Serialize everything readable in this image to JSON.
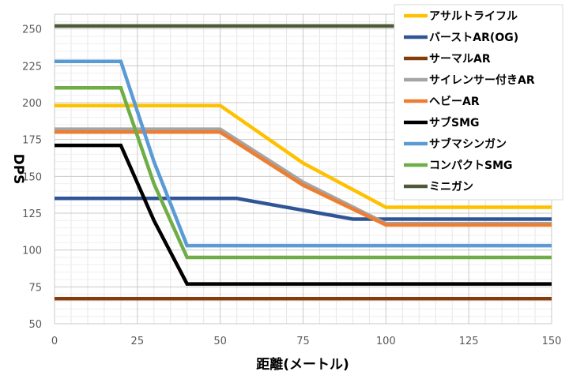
{
  "chart_data": {
    "type": "line",
    "xlabel": "距離(メートル)",
    "ylabel": "DPS",
    "xlim": [
      0,
      150
    ],
    "ylim": [
      50,
      260
    ],
    "xticks": [
      0,
      25,
      50,
      75,
      100,
      125,
      150
    ],
    "yticks": [
      50,
      75,
      100,
      125,
      150,
      175,
      200,
      225,
      250
    ],
    "grid": true,
    "legend_position": "top-right",
    "series": [
      {
        "name": "アサルトライフル",
        "color": "#FFC000",
        "x": [
          0,
          50,
          75,
          100,
          150
        ],
        "y": [
          198,
          198,
          159,
          129,
          129
        ]
      },
      {
        "name": "バーストAR(OG)",
        "color": "#2F5597",
        "x": [
          0,
          55,
          90,
          150
        ],
        "y": [
          135,
          135,
          121,
          121
        ]
      },
      {
        "name": "サーマルAR",
        "color": "#843C0C",
        "x": [
          0,
          150
        ],
        "y": [
          67,
          67
        ]
      },
      {
        "name": "サイレンサー付きAR",
        "color": "#A5A5A5",
        "x": [
          0,
          50,
          75,
          100,
          150
        ],
        "y": [
          182,
          182,
          146,
          118,
          118
        ]
      },
      {
        "name": "ヘビーAR",
        "color": "#ED7D31",
        "x": [
          0,
          50,
          75,
          100,
          150
        ],
        "y": [
          180,
          180,
          144,
          117,
          117
        ]
      },
      {
        "name": "サブSMG",
        "color": "#000000",
        "x": [
          0,
          20,
          30,
          40,
          150
        ],
        "y": [
          171,
          171,
          120,
          77,
          77
        ]
      },
      {
        "name": "サブマシンガン",
        "color": "#5B9BD5",
        "x": [
          0,
          20,
          30,
          40,
          150
        ],
        "y": [
          228,
          228,
          160,
          103,
          103
        ]
      },
      {
        "name": "コンパクトSMG",
        "color": "#70AD47",
        "x": [
          0,
          20,
          30,
          40,
          150
        ],
        "y": [
          210,
          210,
          145,
          95,
          95
        ]
      },
      {
        "name": "ミニガン",
        "color": "#4D5A38",
        "x": [
          0,
          150
        ],
        "y": [
          252,
          252
        ]
      }
    ]
  }
}
